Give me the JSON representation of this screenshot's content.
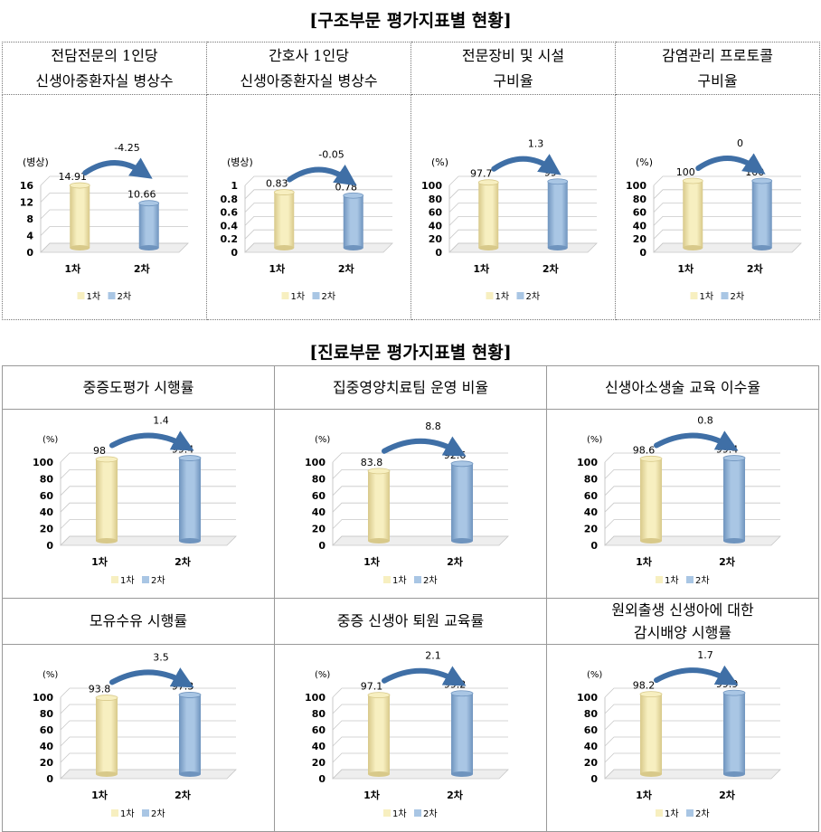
{
  "sections": [
    {
      "title": "[구조부문 평가지표별 현황]"
    },
    {
      "title": "[진료부문 평가지표별 현황]"
    }
  ],
  "chart_data": [
    {
      "type": "bar",
      "header": [
        "전담전문의 1인당",
        "신생아중환자실 병상수"
      ],
      "unit": "(병상)",
      "categories": [
        "1차",
        "2차"
      ],
      "values": [
        14.91,
        10.66
      ],
      "labels": [
        "14.91",
        "10.66"
      ],
      "diff": "-4.25",
      "ylim": [
        0,
        16
      ],
      "yticks": [
        "0",
        "4",
        "8",
        "12",
        "16"
      ],
      "ytick_values": [
        0,
        4,
        8,
        12,
        16
      ],
      "legend": [
        "1차",
        "2차"
      ]
    },
    {
      "type": "bar",
      "header": [
        "간호사 1인당",
        "신생아중환자실 병상수"
      ],
      "unit": "(병상)",
      "categories": [
        "1차",
        "2차"
      ],
      "values": [
        0.83,
        0.78
      ],
      "labels": [
        "0.83",
        "0.78"
      ],
      "diff": "-0.05",
      "ylim": [
        0,
        1
      ],
      "yticks": [
        "0",
        "0.2",
        "0.4",
        "0.6",
        "0.8",
        "1"
      ],
      "ytick_values": [
        0,
        0.2,
        0.4,
        0.6,
        0.8,
        1
      ],
      "legend": [
        "1차",
        "2차"
      ]
    },
    {
      "type": "bar",
      "header": [
        "전문장비 및 시설",
        "구비율"
      ],
      "unit": "(%)",
      "categories": [
        "1차",
        "2차"
      ],
      "values": [
        97.7,
        99
      ],
      "labels": [
        "97.7",
        "99"
      ],
      "diff": "1.3",
      "ylim": [
        0,
        100
      ],
      "yticks": [
        "0",
        "20",
        "40",
        "60",
        "80",
        "100"
      ],
      "ytick_values": [
        0,
        20,
        40,
        60,
        80,
        100
      ],
      "legend": [
        "1차",
        "2차"
      ]
    },
    {
      "type": "bar",
      "header": [
        "감염관리 프로토콜",
        "구비율"
      ],
      "unit": "(%)",
      "categories": [
        "1차",
        "2차"
      ],
      "values": [
        100,
        100
      ],
      "labels": [
        "100",
        "100"
      ],
      "diff": "0",
      "ylim": [
        0,
        100
      ],
      "yticks": [
        "0",
        "20",
        "40",
        "60",
        "80",
        "100"
      ],
      "ytick_values": [
        0,
        20,
        40,
        60,
        80,
        100
      ],
      "legend": [
        "1차",
        "2차"
      ]
    },
    {
      "type": "bar",
      "header": [
        "중증도평가 시행률"
      ],
      "unit": "(%)",
      "categories": [
        "1차",
        "2차"
      ],
      "values": [
        98,
        99.4
      ],
      "labels": [
        "98",
        "99.4"
      ],
      "diff": "1.4",
      "ylim": [
        0,
        100
      ],
      "yticks": [
        "0",
        "20",
        "40",
        "60",
        "80",
        "100"
      ],
      "ytick_values": [
        0,
        20,
        40,
        60,
        80,
        100
      ],
      "legend": [
        "1차",
        "2차"
      ]
    },
    {
      "type": "bar",
      "header": [
        "집중영양치료팀 운영 비율"
      ],
      "unit": "(%)",
      "categories": [
        "1차",
        "2차"
      ],
      "values": [
        83.8,
        92.6
      ],
      "labels": [
        "83.8",
        "92.6"
      ],
      "diff": "8.8",
      "ylim": [
        0,
        100
      ],
      "yticks": [
        "0",
        "20",
        "40",
        "60",
        "80",
        "100"
      ],
      "ytick_values": [
        0,
        20,
        40,
        60,
        80,
        100
      ],
      "legend": [
        "1차",
        "2차"
      ]
    },
    {
      "type": "bar",
      "header": [
        "신생아소생술 교육 이수율"
      ],
      "unit": "(%)",
      "categories": [
        "1차",
        "2차"
      ],
      "values": [
        98.6,
        99.4
      ],
      "labels": [
        "98.6",
        "99.4"
      ],
      "diff": "0.8",
      "ylim": [
        0,
        100
      ],
      "yticks": [
        "0",
        "20",
        "40",
        "60",
        "80",
        "100"
      ],
      "ytick_values": [
        0,
        20,
        40,
        60,
        80,
        100
      ],
      "legend": [
        "1차",
        "2차"
      ]
    },
    {
      "type": "bar",
      "header": [
        "모유수유 시행률"
      ],
      "unit": "(%)",
      "categories": [
        "1차",
        "2차"
      ],
      "values": [
        93.8,
        97.3
      ],
      "labels": [
        "93.8",
        "97.3"
      ],
      "diff": "3.5",
      "ylim": [
        0,
        100
      ],
      "yticks": [
        "0",
        "20",
        "40",
        "60",
        "80",
        "100"
      ],
      "ytick_values": [
        0,
        20,
        40,
        60,
        80,
        100
      ],
      "legend": [
        "1차",
        "2차"
      ]
    },
    {
      "type": "bar",
      "header": [
        "중증 신생아 퇴원 교육률"
      ],
      "unit": "(%)",
      "categories": [
        "1차",
        "2차"
      ],
      "values": [
        97.1,
        99.2
      ],
      "labels": [
        "97.1",
        "99.2"
      ],
      "diff": "2.1",
      "ylim": [
        0,
        100
      ],
      "yticks": [
        "0",
        "20",
        "40",
        "60",
        "80",
        "100"
      ],
      "ytick_values": [
        0,
        20,
        40,
        60,
        80,
        100
      ],
      "legend": [
        "1차",
        "2차"
      ]
    },
    {
      "type": "bar",
      "header": [
        "원외출생 신생아에 대한",
        "감시배양 시행률"
      ],
      "unit": "(%)",
      "categories": [
        "1차",
        "2차"
      ],
      "values": [
        98.2,
        99.9
      ],
      "labels": [
        "98.2",
        "99.9"
      ],
      "diff": "1.7",
      "ylim": [
        0,
        100
      ],
      "yticks": [
        "0",
        "20",
        "40",
        "60",
        "80",
        "100"
      ],
      "ytick_values": [
        0,
        20,
        40,
        60,
        80,
        100
      ],
      "legend": [
        "1차",
        "2차"
      ]
    }
  ],
  "colors": {
    "series1": "#f7efc0",
    "series1_dark": "#d8c98a",
    "series2": "#a9c6e4",
    "series2_dark": "#6f94be",
    "arrow": "#3f6fa6",
    "grid": "#c8c8c8"
  }
}
